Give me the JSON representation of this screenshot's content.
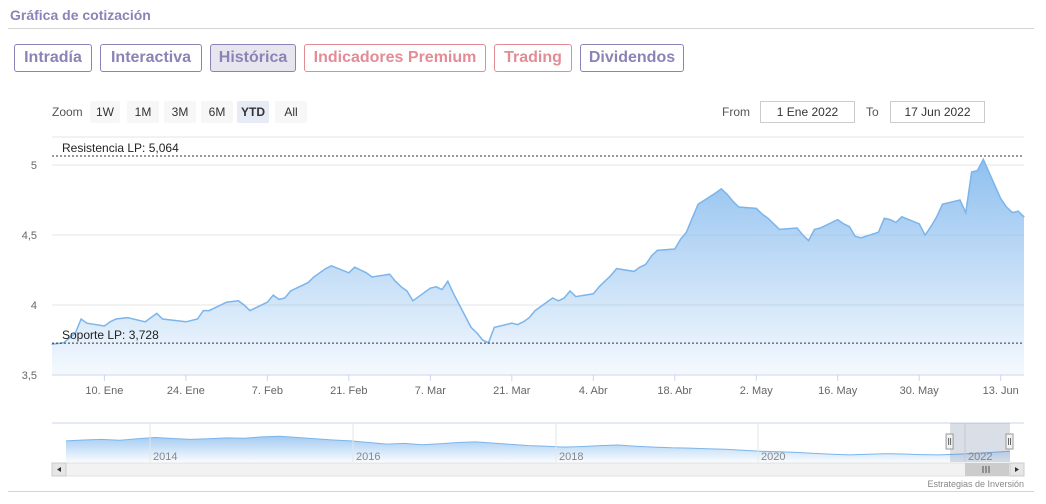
{
  "section": {
    "title": "Gráfica de cotización"
  },
  "tabs": [
    {
      "label": "Intradía",
      "variant": "normal",
      "active": false
    },
    {
      "label": "Interactiva",
      "variant": "normal",
      "active": false
    },
    {
      "label": "Histórica",
      "variant": "normal",
      "active": true
    },
    {
      "label": "Indicadores Premium",
      "variant": "premium",
      "active": false
    },
    {
      "label": "Trading",
      "variant": "premium",
      "active": false
    },
    {
      "label": "Dividendos",
      "variant": "normal",
      "active": false
    }
  ],
  "zoom": {
    "label": "Zoom",
    "buttons": [
      {
        "label": "1W",
        "active": false
      },
      {
        "label": "1M",
        "active": false
      },
      {
        "label": "3M",
        "active": false
      },
      {
        "label": "6M",
        "active": false
      },
      {
        "label": "YTD",
        "active": true
      },
      {
        "label": "All",
        "active": false
      }
    ]
  },
  "range": {
    "from_label": "From",
    "from_value": "1 Ene 2022",
    "to_label": "To",
    "to_value": "17 Jun 2022"
  },
  "chart_data": {
    "type": "area",
    "title": "",
    "xlabel": "",
    "ylabel": "",
    "x_range": [
      "2022-01-01",
      "2022-06-17"
    ],
    "ylim": [
      3.5,
      5.2
    ],
    "y_ticks": [
      {
        "value": 3.5,
        "label": "3,5"
      },
      {
        "value": 4,
        "label": "4"
      },
      {
        "value": 4.5,
        "label": "4,5"
      },
      {
        "value": 5,
        "label": "5"
      }
    ],
    "x_ticks": [
      {
        "date": "2022-01-10",
        "label": "10. Ene"
      },
      {
        "date": "2022-01-24",
        "label": "24. Ene"
      },
      {
        "date": "2022-02-07",
        "label": "7. Feb"
      },
      {
        "date": "2022-02-21",
        "label": "21. Feb"
      },
      {
        "date": "2022-03-07",
        "label": "7. Mar"
      },
      {
        "date": "2022-03-21",
        "label": "21. Mar"
      },
      {
        "date": "2022-04-04",
        "label": "4. Abr"
      },
      {
        "date": "2022-04-18",
        "label": "18. Abr"
      },
      {
        "date": "2022-05-02",
        "label": "2. May"
      },
      {
        "date": "2022-05-16",
        "label": "16. May"
      },
      {
        "date": "2022-05-30",
        "label": "30. May"
      },
      {
        "date": "2022-06-13",
        "label": "13. Jun"
      }
    ],
    "grid": true,
    "legend": "none",
    "colors": {
      "line": "#7cb5ec",
      "fill_top": "#7cb5ec",
      "fill_bottom": "#eef5fc",
      "reference": "#333333",
      "grid": "#e6e6e6"
    },
    "reference_lines": [
      {
        "label": "Resistencia LP: 5,064",
        "value": 5.064
      },
      {
        "label": "Soporte LP: 3,728",
        "value": 3.728
      }
    ],
    "series": [
      {
        "points": [
          [
            "2022-01-01",
            3.72
          ],
          [
            "2022-01-03",
            3.73
          ],
          [
            "2022-01-05",
            3.8
          ],
          [
            "2022-01-06",
            3.9
          ],
          [
            "2022-01-07",
            3.87
          ],
          [
            "2022-01-10",
            3.85
          ],
          [
            "2022-01-11",
            3.88
          ],
          [
            "2022-01-12",
            3.9
          ],
          [
            "2022-01-14",
            3.91
          ],
          [
            "2022-01-17",
            3.88
          ],
          [
            "2022-01-19",
            3.94
          ],
          [
            "2022-01-20",
            3.9
          ],
          [
            "2022-01-24",
            3.88
          ],
          [
            "2022-01-26",
            3.9
          ],
          [
            "2022-01-27",
            3.96
          ],
          [
            "2022-01-28",
            3.96
          ],
          [
            "2022-01-31",
            4.02
          ],
          [
            "2022-02-02",
            4.03
          ],
          [
            "2022-02-03",
            4.0
          ],
          [
            "2022-02-04",
            3.96
          ],
          [
            "2022-02-07",
            4.02
          ],
          [
            "2022-02-08",
            4.07
          ],
          [
            "2022-02-09",
            4.04
          ],
          [
            "2022-02-10",
            4.05
          ],
          [
            "2022-02-11",
            4.1
          ],
          [
            "2022-02-14",
            4.16
          ],
          [
            "2022-02-15",
            4.2
          ],
          [
            "2022-02-16",
            4.23
          ],
          [
            "2022-02-17",
            4.26
          ],
          [
            "2022-02-18",
            4.28
          ],
          [
            "2022-02-21",
            4.23
          ],
          [
            "2022-02-22",
            4.27
          ],
          [
            "2022-02-23",
            4.25
          ],
          [
            "2022-02-24",
            4.23
          ],
          [
            "2022-02-25",
            4.2
          ],
          [
            "2022-02-28",
            4.22
          ],
          [
            "2022-03-01",
            4.17
          ],
          [
            "2022-03-02",
            4.13
          ],
          [
            "2022-03-03",
            4.1
          ],
          [
            "2022-03-04",
            4.03
          ],
          [
            "2022-03-07",
            4.12
          ],
          [
            "2022-03-08",
            4.13
          ],
          [
            "2022-03-09",
            4.11
          ],
          [
            "2022-03-10",
            4.17
          ],
          [
            "2022-03-11",
            4.08
          ],
          [
            "2022-03-14",
            3.84
          ],
          [
            "2022-03-15",
            3.8
          ],
          [
            "2022-03-16",
            3.75
          ],
          [
            "2022-03-17",
            3.73
          ],
          [
            "2022-03-18",
            3.84
          ],
          [
            "2022-03-21",
            3.87
          ],
          [
            "2022-03-22",
            3.86
          ],
          [
            "2022-03-23",
            3.88
          ],
          [
            "2022-03-24",
            3.91
          ],
          [
            "2022-03-25",
            3.96
          ],
          [
            "2022-03-28",
            4.05
          ],
          [
            "2022-03-29",
            4.03
          ],
          [
            "2022-03-30",
            4.05
          ],
          [
            "2022-03-31",
            4.1
          ],
          [
            "2022-04-01",
            4.06
          ],
          [
            "2022-04-04",
            4.08
          ],
          [
            "2022-04-05",
            4.13
          ],
          [
            "2022-04-06",
            4.17
          ],
          [
            "2022-04-07",
            4.21
          ],
          [
            "2022-04-08",
            4.26
          ],
          [
            "2022-04-11",
            4.24
          ],
          [
            "2022-04-12",
            4.27
          ],
          [
            "2022-04-13",
            4.29
          ],
          [
            "2022-04-14",
            4.35
          ],
          [
            "2022-04-15",
            4.39
          ],
          [
            "2022-04-18",
            4.4
          ],
          [
            "2022-04-19",
            4.47
          ],
          [
            "2022-04-20",
            4.52
          ],
          [
            "2022-04-21",
            4.62
          ],
          [
            "2022-04-22",
            4.72
          ],
          [
            "2022-04-25",
            4.8
          ],
          [
            "2022-04-26",
            4.83
          ],
          [
            "2022-04-27",
            4.79
          ],
          [
            "2022-04-28",
            4.74
          ],
          [
            "2022-04-29",
            4.7
          ],
          [
            "2022-05-02",
            4.69
          ],
          [
            "2022-05-03",
            4.65
          ],
          [
            "2022-05-04",
            4.62
          ],
          [
            "2022-05-05",
            4.58
          ],
          [
            "2022-05-06",
            4.54
          ],
          [
            "2022-05-09",
            4.55
          ],
          [
            "2022-05-10",
            4.5
          ],
          [
            "2022-05-11",
            4.46
          ],
          [
            "2022-05-12",
            4.54
          ],
          [
            "2022-05-13",
            4.55
          ],
          [
            "2022-05-16",
            4.61
          ],
          [
            "2022-05-17",
            4.58
          ],
          [
            "2022-05-18",
            4.56
          ],
          [
            "2022-05-19",
            4.49
          ],
          [
            "2022-05-20",
            4.48
          ],
          [
            "2022-05-23",
            4.52
          ],
          [
            "2022-05-24",
            4.62
          ],
          [
            "2022-05-25",
            4.61
          ],
          [
            "2022-05-26",
            4.59
          ],
          [
            "2022-05-27",
            4.63
          ],
          [
            "2022-05-30",
            4.58
          ],
          [
            "2022-05-31",
            4.5
          ],
          [
            "2022-06-01",
            4.56
          ],
          [
            "2022-06-02",
            4.63
          ],
          [
            "2022-06-03",
            4.72
          ],
          [
            "2022-06-06",
            4.75
          ],
          [
            "2022-06-07",
            4.66
          ],
          [
            "2022-06-08",
            4.95
          ],
          [
            "2022-06-09",
            4.96
          ],
          [
            "2022-06-10",
            5.04
          ],
          [
            "2022-06-13",
            4.76
          ],
          [
            "2022-06-14",
            4.7
          ],
          [
            "2022-06-15",
            4.66
          ],
          [
            "2022-06-16",
            4.67
          ],
          [
            "2022-06-17",
            4.63
          ]
        ]
      }
    ]
  },
  "navigator": {
    "year_labels": [
      "2014",
      "2016",
      "2018",
      "2020",
      "2022"
    ],
    "series": [
      0.55,
      0.58,
      0.6,
      0.57,
      0.62,
      0.66,
      0.63,
      0.6,
      0.62,
      0.65,
      0.64,
      0.68,
      0.7,
      0.66,
      0.62,
      0.58,
      0.55,
      0.5,
      0.45,
      0.47,
      0.43,
      0.46,
      0.5,
      0.52,
      0.48,
      0.44,
      0.4,
      0.38,
      0.35,
      0.37,
      0.4,
      0.42,
      0.38,
      0.35,
      0.33,
      0.32,
      0.3,
      0.28,
      0.25,
      0.22,
      0.2,
      0.18,
      0.15,
      0.12,
      0.1,
      0.12,
      0.14,
      0.13,
      0.11,
      0.1,
      0.12,
      0.15,
      0.18,
      0.22
    ],
    "selected_range": [
      0.945,
      1.0
    ]
  },
  "footer": {
    "credit": "Estrategias de Inversión"
  }
}
